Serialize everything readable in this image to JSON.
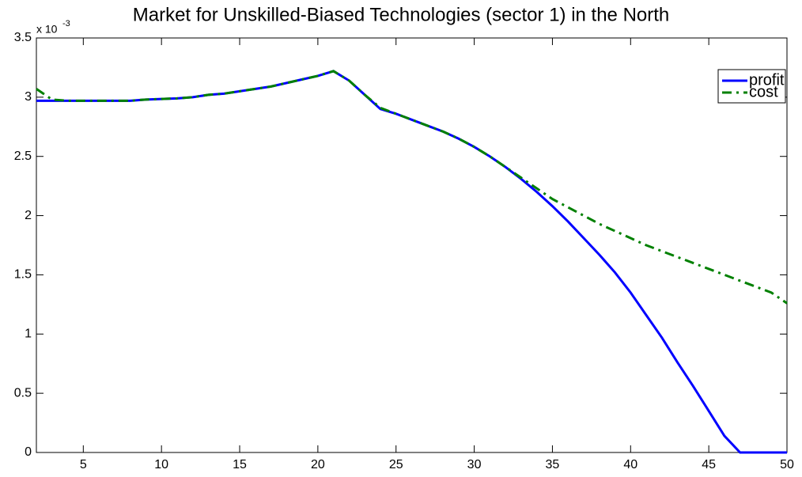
{
  "chart_data": {
    "type": "line",
    "title": "Market for Unskilled-Biased Technologies (sector 1) in the North",
    "y_multiplier": "x 10",
    "y_exponent": "-3",
    "x": [
      2,
      3,
      4,
      5,
      6,
      7,
      8,
      9,
      10,
      11,
      12,
      13,
      14,
      15,
      16,
      17,
      18,
      19,
      20,
      21,
      22,
      23,
      24,
      25,
      26,
      27,
      28,
      29,
      30,
      31,
      32,
      33,
      34,
      35,
      36,
      37,
      38,
      39,
      40,
      41,
      42,
      43,
      44,
      45,
      46,
      47,
      48,
      49,
      50
    ],
    "series": [
      {
        "name": "profit",
        "color": "#0000ff",
        "style": "solid",
        "values": [
          2.97,
          2.97,
          2.97,
          2.97,
          2.97,
          2.97,
          2.97,
          2.98,
          2.985,
          2.99,
          3.0,
          3.02,
          3.03,
          3.05,
          3.07,
          3.09,
          3.12,
          3.15,
          3.18,
          3.22,
          3.14,
          3.02,
          2.9,
          2.86,
          2.81,
          2.76,
          2.71,
          2.65,
          2.58,
          2.5,
          2.41,
          2.31,
          2.2,
          2.08,
          1.95,
          1.81,
          1.67,
          1.52,
          1.35,
          1.16,
          0.97,
          0.76,
          0.56,
          0.35,
          0.14,
          0,
          0,
          0,
          0
        ]
      },
      {
        "name": "cost",
        "color": "#008000",
        "style": "dashdot",
        "values": [
          3.07,
          2.98,
          2.97,
          2.97,
          2.97,
          2.97,
          2.97,
          2.98,
          2.985,
          2.99,
          3.0,
          3.02,
          3.03,
          3.05,
          3.07,
          3.09,
          3.12,
          3.15,
          3.18,
          3.22,
          3.14,
          3.02,
          2.91,
          2.86,
          2.81,
          2.76,
          2.71,
          2.65,
          2.58,
          2.5,
          2.41,
          2.32,
          2.23,
          2.14,
          2.07,
          2.0,
          1.93,
          1.87,
          1.81,
          1.75,
          1.7,
          1.65,
          1.6,
          1.55,
          1.5,
          1.45,
          1.4,
          1.35,
          1.26
        ]
      }
    ],
    "xlim": [
      2,
      50
    ],
    "xticks": [
      5,
      10,
      15,
      20,
      25,
      30,
      35,
      40,
      45,
      50
    ],
    "ylim": [
      0,
      3.5
    ],
    "yticks": [
      0,
      0.5,
      1,
      1.5,
      2,
      2.5,
      3,
      3.5
    ],
    "grid": false,
    "legend": "upper right"
  }
}
